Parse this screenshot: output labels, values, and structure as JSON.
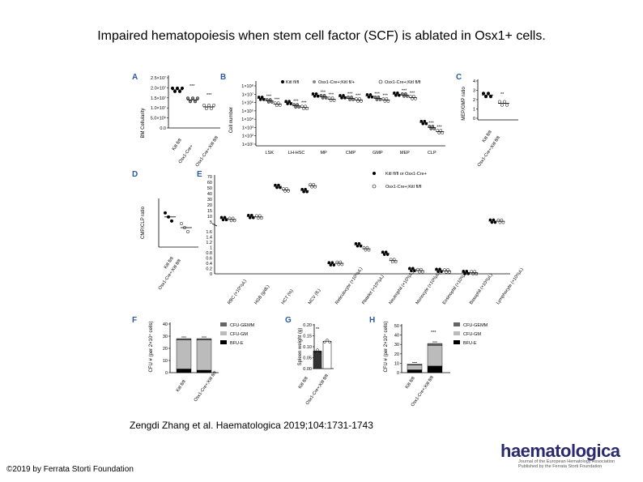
{
  "title": "Impaired hematopoiesis when stem cell factor (SCF) is ablated in Osx1+ cells.",
  "citation": "Zengdi Zhang et al. Haematologica 2019;104:1731-1743",
  "copyright": "©2019 by Ferrata Storti Foundation",
  "logo": {
    "name": "haematologica",
    "tagline1": "Journal of the European Hematology Association",
    "tagline2": "Published by the Ferrata Storti Foundation"
  },
  "figure": {
    "panels": [
      "A",
      "B",
      "C",
      "D",
      "E",
      "F",
      "G",
      "H"
    ],
    "genotypes": {
      "ctrl": "Kitl fl/fl",
      "ko": "Osx1-Cre+;Kitl fl/fl",
      "osx": "Osx1-Cre+",
      "ctrl_or_osx": "Kitl fl/fl or Osx1-Cre+"
    },
    "sig": {
      "three": "***",
      "two": "**",
      "one": "*"
    }
  },
  "chart_data": [
    {
      "panel": "A",
      "type": "scatter",
      "ylabel": "BM Cellularity",
      "yticks": [
        "2.5×10⁷",
        "2.0×10⁷",
        "1.5×10⁷",
        "1.0×10⁷",
        "5.0×10⁶",
        "0.0"
      ],
      "categories": [
        "Kitl fl/fl",
        "Osx1-Cre+",
        "Osx1-Cre+;Kitl fl/fl"
      ],
      "values": [
        19000000.0,
        14000000.0,
        10500000.0
      ],
      "significance": [
        "",
        "***",
        "***"
      ]
    },
    {
      "panel": "B",
      "type": "scatter",
      "ylabel": "Cell number",
      "yscale": "log",
      "yticks": [
        "1×10⁸",
        "1×10⁷",
        "1×10⁶",
        "1×10⁵",
        "1×10⁴",
        "1×10³",
        "1×10²",
        "1×10¹"
      ],
      "categories": [
        "LSK",
        "LH-HSC",
        "MP",
        "CMP",
        "GMP",
        "MEP",
        "CLP"
      ],
      "series": [
        {
          "name": "Kitl fl/fl",
          "values": [
            6.5,
            6.0,
            6.9,
            6.7,
            6.8,
            7.0,
            3.6
          ]
        },
        {
          "name": "Osx1-Cre+;Kitl fl/+",
          "values": [
            6.2,
            5.6,
            6.7,
            6.5,
            6.5,
            6.9,
            3.0
          ]
        },
        {
          "name": "Osx1-Cre+;Kitl fl/fl",
          "values": [
            5.8,
            5.4,
            6.4,
            6.3,
            6.3,
            6.6,
            2.5
          ]
        }
      ]
    },
    {
      "panel": "C",
      "type": "scatter",
      "ylabel": "MEP/GMP ratio",
      "yticks": [
        "4",
        "3",
        "2",
        "1",
        "0"
      ],
      "categories": [
        "Kitl fl/fl",
        "Osx1-Cre+;Kitl fl/fl"
      ],
      "values": [
        2.5,
        1.6
      ],
      "significance": [
        "",
        "**"
      ]
    },
    {
      "panel": "D",
      "type": "scatter",
      "ylabel": "CMP/CLP ratio",
      "categories": [
        "Kitl fl/fl",
        "Osx1-Cre+;Kitl fl/fl"
      ],
      "values": [
        6.2,
        4.0
      ]
    },
    {
      "panel": "E",
      "type": "scatter",
      "yticks_top": [
        "70",
        "60",
        "50",
        "40",
        "30",
        "20",
        "15",
        "10",
        "5"
      ],
      "yticks_bottom": [
        "1.6",
        "1.4",
        "1.2",
        "1",
        "0.8",
        "0.6",
        "0.4",
        "0.2",
        "0"
      ],
      "categories": [
        "RBC (×10⁶/μL)",
        "HGB (g/dL)",
        "HCT (%)",
        "MCV (fL)",
        "Reticulocyte (×10⁶/μL)",
        "Platelet (×10⁶/μL)",
        "Neutrophil (×10³/μL)",
        "Monocyte (×10³/μL)",
        "Eosinophil (×10³/μL)",
        "Basophil (×10³/μL)",
        "Lymphocyte (×10³/μL)"
      ],
      "series": [
        {
          "name": "Kitl fl/fl or Osx1-Cre+",
          "values": [
            9.8,
            12.8,
            56,
            50,
            0.38,
            1.1,
            0.78,
            0.16,
            0.13,
            0.05,
            6.2
          ]
        },
        {
          "name": "Osx1-Cre+;Kitl fl/fl",
          "values": [
            8.6,
            12.2,
            51,
            57,
            0.4,
            0.95,
            0.5,
            0.12,
            0.11,
            0.04,
            6.0
          ]
        }
      ]
    },
    {
      "panel": "F",
      "type": "bar",
      "ylabel": "CFU # (per 2×10⁴ cells)",
      "yticks": [
        "40",
        "30",
        "20",
        "10",
        "0"
      ],
      "categories": [
        "Kitl fl/fl",
        "Osx1-Cre+;Kitl fl/fl"
      ],
      "series": [
        {
          "name": "CFU-GEMM",
          "values": [
            1,
            1
          ]
        },
        {
          "name": "CFU-GM",
          "values": [
            24,
            25
          ]
        },
        {
          "name": "BFU-E",
          "values": [
            3,
            2
          ]
        }
      ]
    },
    {
      "panel": "G",
      "type": "bar",
      "ylabel": "Spleen weight (g)",
      "yticks": [
        "0.20",
        "0.15",
        "0.10",
        "0.05",
        "0.00"
      ],
      "categories": [
        "Kitl fl/fl",
        "Osx1-Cre+;Kitl fl/fl"
      ],
      "values": [
        0.08,
        0.125
      ],
      "significance": [
        "",
        "**"
      ]
    },
    {
      "panel": "H",
      "type": "bar",
      "ylabel": "CFU # (per 2×10⁴ cells)",
      "yticks": [
        "50",
        "40",
        "30",
        "20",
        "10",
        "0"
      ],
      "categories": [
        "Kitl fl/fl",
        "Osx1-Cre+;Kitl fl/fl"
      ],
      "series": [
        {
          "name": "CFU-GEMM",
          "values": [
            1,
            2
          ]
        },
        {
          "name": "CFU-GM",
          "values": [
            5,
            22
          ]
        },
        {
          "name": "BFU-E",
          "values": [
            3,
            7
          ]
        }
      ],
      "significance": [
        "",
        "***"
      ]
    }
  ]
}
